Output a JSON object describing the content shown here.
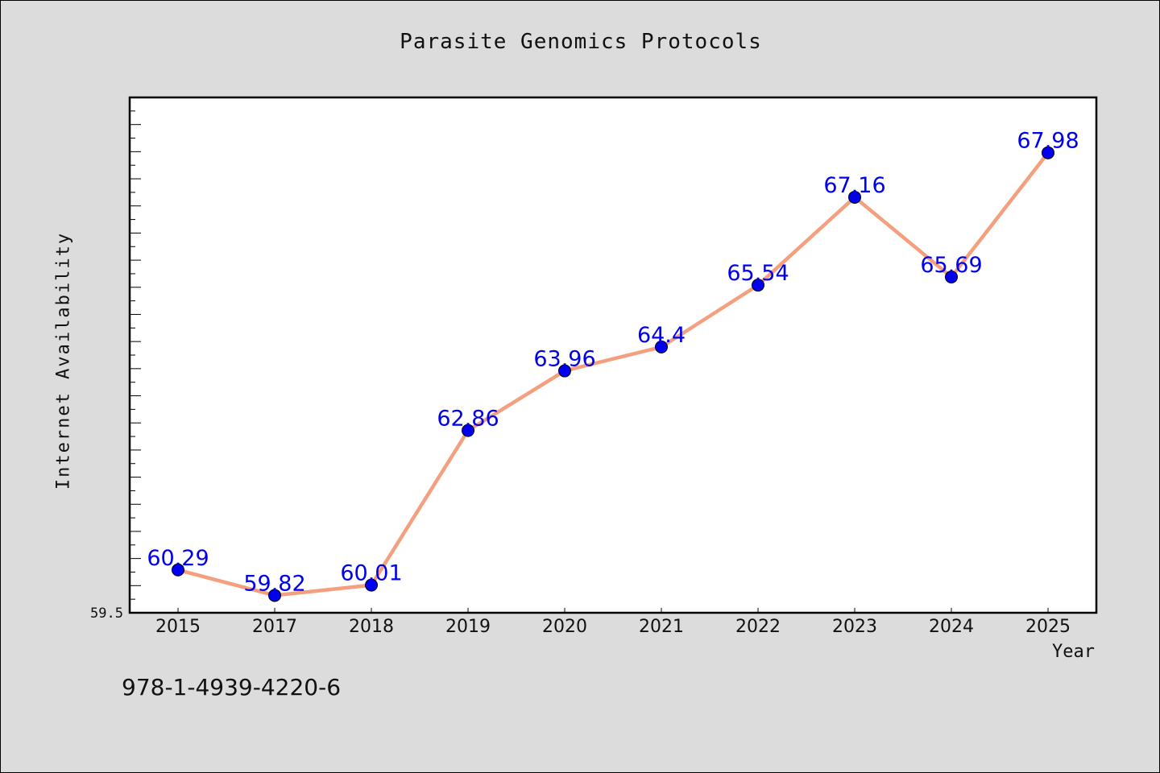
{
  "chart": {
    "title": "Parasite Genomics Protocols",
    "xlabel": "Year",
    "ylabel": "Internet Availability",
    "ymin_label": "59.5"
  },
  "footer": {
    "isbn": "978-1-4939-4220-6"
  },
  "colors": {
    "line": "#f4a07f",
    "marker": "#0000ee",
    "data_label": "#0000ee",
    "plot_background": "#ffffff",
    "figure_background": "#dcdcdc"
  },
  "chart_data": {
    "type": "line",
    "title": "Parasite Genomics Protocols",
    "xlabel": "Year",
    "ylabel": "Internet Availability",
    "categories": [
      "2015",
      "2017",
      "2018",
      "2019",
      "2020",
      "2021",
      "2022",
      "2023",
      "2024",
      "2025"
    ],
    "series": [
      {
        "values": [
          60.29,
          59.82,
          60.01,
          62.86,
          63.96,
          64.4,
          65.54,
          67.16,
          65.69,
          67.98
        ]
      }
    ],
    "data_labels": [
      "60.29",
      "59.82",
      "60.01",
      "62.86",
      "63.96",
      "64.4",
      "65.54",
      "67.16",
      "65.69",
      "67.98"
    ],
    "ylim": [
      59.5,
      69
    ],
    "grid": false,
    "legend": "none"
  }
}
